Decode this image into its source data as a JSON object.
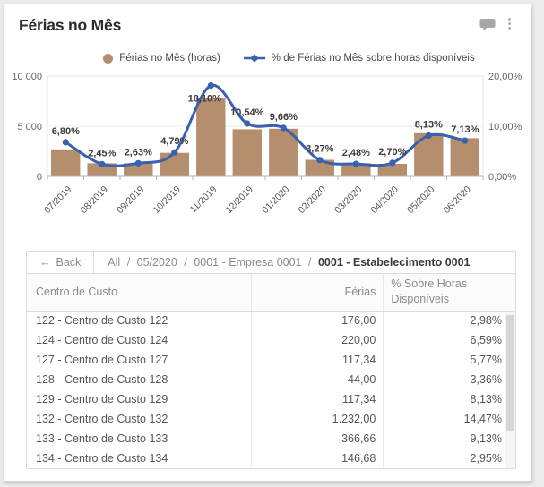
{
  "widget": {
    "title": "Férias no Mês"
  },
  "icons": {
    "menu_glyph": "⋮",
    "back_arrow": "←"
  },
  "colors": {
    "bar": "#b48e6d",
    "line": "#3a61ad",
    "label": "#3d3d3d",
    "axis_text": "#666666"
  },
  "legend": [
    {
      "label": "Férias no Mês (horas)"
    },
    {
      "label": "% de Férias no Mês sobre horas disponíveis"
    }
  ],
  "chart_data": {
    "type": "combo-bar-line",
    "categories": [
      "07/2019",
      "08/2019",
      "09/2019",
      "10/2019",
      "11/2019",
      "12/2019",
      "01/2020",
      "02/2020",
      "03/2020",
      "04/2020",
      "05/2020",
      "06/2020"
    ],
    "series": [
      {
        "name": "Férias no Mês (horas)",
        "type": "bar",
        "axis": "left",
        "values": [
          2700,
          1300,
          1300,
          2350,
          7800,
          4700,
          4750,
          1650,
          1300,
          1250,
          4300,
          3800
        ]
      },
      {
        "name": "% de Férias no Mês sobre horas disponíveis",
        "type": "line",
        "axis": "right",
        "values": [
          6.8,
          2.45,
          2.63,
          4.79,
          18.1,
          10.54,
          9.66,
          3.27,
          2.48,
          2.7,
          8.13,
          7.13
        ],
        "labels": [
          "6,80%",
          "2,45%",
          "2,63%",
          "4,79%",
          "18,10%",
          "10,54%",
          "9,66%",
          "3,27%",
          "2,48%",
          "2,70%",
          "8,13%",
          "7,13%"
        ]
      }
    ],
    "left_axis": {
      "ticks": [
        "0",
        "5 000",
        "10 000"
      ],
      "range": [
        0,
        10000
      ]
    },
    "right_axis": {
      "ticks": [
        "0,00%",
        "10,00%",
        "20,00%"
      ],
      "range": [
        0,
        20
      ]
    },
    "grid": "single horizontal gridline at 5000 / 10,00%",
    "legend_position": "top-center"
  },
  "breadcrumb": {
    "back_label": "Back",
    "separator": "/",
    "path": [
      "All",
      "05/2020",
      "0001 - Empresa 0001"
    ],
    "current": "0001 - Estabelecimento 0001"
  },
  "table": {
    "columns": [
      "Centro de Custo",
      "Férias",
      "% Sobre Horas Disponíveis"
    ],
    "rows": [
      [
        "122 - Centro de Custo 122",
        "176,00",
        "2,98%"
      ],
      [
        "124 - Centro de Custo 124",
        "220,00",
        "6,59%"
      ],
      [
        "127 - Centro de Custo 127",
        "117,34",
        "5,77%"
      ],
      [
        "128 - Centro de Custo 128",
        "44,00",
        "3,36%"
      ],
      [
        "129 - Centro de Custo 129",
        "117,34",
        "8,13%"
      ],
      [
        "132 - Centro de Custo 132",
        "1.232,00",
        "14,47%"
      ],
      [
        "133 - Centro de Custo 133",
        "366,66",
        "9,13%"
      ],
      [
        "134 - Centro de Custo 134",
        "146,68",
        "2,95%"
      ]
    ]
  }
}
